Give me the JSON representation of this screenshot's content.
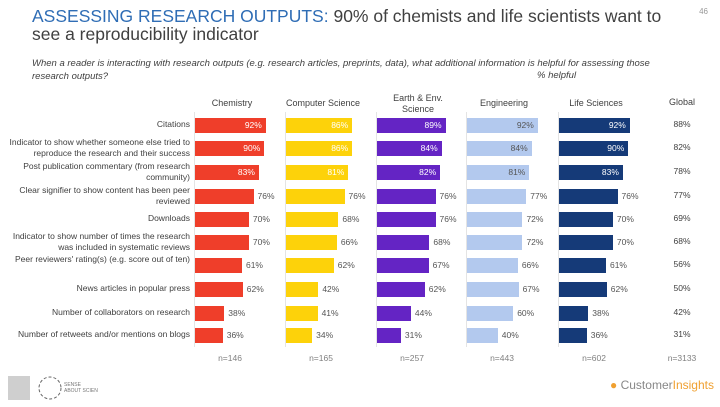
{
  "page_number": "46",
  "header": {
    "title_highlight": "ASSESSING RESEARCH OUTPUTS:",
    "title_rest": " 90% of chemists and life scientists want to see a reproducibility indicator",
    "subtitle": "When a reader is interacting with research outputs (e.g. research articles, preprints, data), what additional information is helpful for assessing those research outputs?",
    "unit_note": "% helpful"
  },
  "chart_data": {
    "type": "bar",
    "orientation": "horizontal",
    "categories": [
      "Citations",
      "Indicator to show whether someone else tried to reproduce the research and their success",
      "Post publication commentary (from research community)",
      "Clear signifier to show content has been peer reviewed",
      "Downloads",
      "Indicator to show number of times the research was included in systematic reviews",
      "Peer reviewers' rating(s) (e.g. score out of ten)",
      "News articles in popular press",
      "Number of collaborators on research",
      "Number of retweets and/or mentions on blogs"
    ],
    "series": [
      {
        "name": "Chemistry",
        "color": "#ef3e2a",
        "n": "n=146",
        "values": [
          92,
          90,
          83,
          76,
          70,
          70,
          61,
          62,
          38,
          36
        ]
      },
      {
        "name": "Computer Science",
        "color": "#fdd20a",
        "n": "n=165",
        "values": [
          86,
          86,
          81,
          76,
          68,
          66,
          62,
          42,
          41,
          34
        ]
      },
      {
        "name": "Earth & Env. Science",
        "color": "#6424c4",
        "n": "n=257",
        "values": [
          89,
          84,
          82,
          76,
          76,
          68,
          67,
          62,
          44,
          31
        ]
      },
      {
        "name": "Engineering",
        "color": "#b3c9ee",
        "n": "n=443",
        "values": [
          92,
          84,
          81,
          77,
          72,
          72,
          66,
          67,
          60,
          40
        ]
      },
      {
        "name": "Life Sciences",
        "color": "#153a78",
        "n": "n=602",
        "values": [
          92,
          90,
          83,
          76,
          70,
          70,
          61,
          62,
          38,
          36
        ]
      }
    ],
    "global": {
      "name": "Global",
      "n": "n=3133",
      "values": [
        88,
        82,
        78,
        77,
        69,
        68,
        56,
        50,
        42,
        31
      ]
    },
    "value_suffix": "%",
    "grid": false,
    "legend": "none"
  },
  "footer": {
    "logo_left_text": "SENSE ABOUT SCIENCE",
    "logo_right_a": "Customer",
    "logo_right_b": "Insights"
  }
}
